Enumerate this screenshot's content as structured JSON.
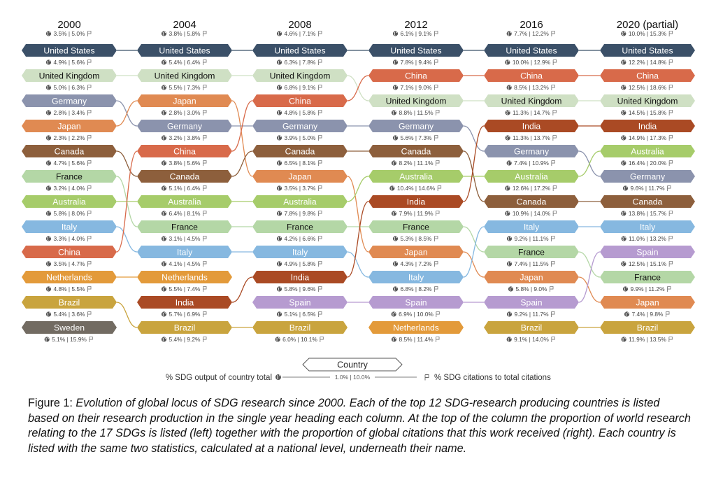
{
  "years": [
    {
      "label": "2000",
      "world_output": "3.5%",
      "world_citations": "5.0%"
    },
    {
      "label": "2004",
      "world_output": "3.8%",
      "world_citations": "5.8%"
    },
    {
      "label": "2008",
      "world_output": "4.6%",
      "world_citations": "7.1%"
    },
    {
      "label": "2012",
      "world_output": "6.1%",
      "world_citations": "9.1%"
    },
    {
      "label": "2016",
      "world_output": "7.7%",
      "world_citations": "12.2%"
    },
    {
      "label": "2020 (partial)",
      "world_output": "10.0%",
      "world_citations": "15.3%"
    }
  ],
  "country_colors": {
    "United States": "#3b5068",
    "United Kingdom": "#cfe0c4",
    "Germany": "#8b93ad",
    "Japan": "#e08a52",
    "Canada": "#8d5f3c",
    "France": "#b4d7a6",
    "Australia": "#a6cc6a",
    "Italy": "#86b8e0",
    "China": "#d86a4a",
    "Netherlands": "#e39a3a",
    "Brazil": "#c9a43e",
    "Sweden": "#726b62",
    "India": "#aa4a24",
    "Spain": "#b69bd0"
  },
  "dark_text_countries": [
    "United Kingdom",
    "France"
  ],
  "columns": [
    [
      {
        "name": "United States",
        "output": "4.9%",
        "citations": "5.6%"
      },
      {
        "name": "United Kingdom",
        "output": "5.0%",
        "citations": "6.3%"
      },
      {
        "name": "Germany",
        "output": "2.8%",
        "citations": "3.4%"
      },
      {
        "name": "Japan",
        "output": "2.3%",
        "citations": "2.2%"
      },
      {
        "name": "Canada",
        "output": "4.7%",
        "citations": "5.6%"
      },
      {
        "name": "France",
        "output": "3.2%",
        "citations": "4.0%"
      },
      {
        "name": "Australia",
        "output": "5.8%",
        "citations": "8.0%"
      },
      {
        "name": "Italy",
        "output": "3.3%",
        "citations": "4.0%"
      },
      {
        "name": "China",
        "output": "3.5%",
        "citations": "4.7%"
      },
      {
        "name": "Netherlands",
        "output": "4.8%",
        "citations": "5.5%"
      },
      {
        "name": "Brazil",
        "output": "5.4%",
        "citations": "3.6%"
      },
      {
        "name": "Sweden",
        "output": "5.1%",
        "citations": "15.9%"
      }
    ],
    [
      {
        "name": "United States",
        "output": "5.4%",
        "citations": "6.4%"
      },
      {
        "name": "United Kingdom",
        "output": "5.5%",
        "citations": "7.3%"
      },
      {
        "name": "Japan",
        "output": "2.8%",
        "citations": "3.0%"
      },
      {
        "name": "Germany",
        "output": "3.2%",
        "citations": "3.8%"
      },
      {
        "name": "China",
        "output": "3.8%",
        "citations": "5.6%"
      },
      {
        "name": "Canada",
        "output": "5.1%",
        "citations": "6.4%"
      },
      {
        "name": "Australia",
        "output": "6.4%",
        "citations": "8.1%"
      },
      {
        "name": "France",
        "output": "3.1%",
        "citations": "4.5%"
      },
      {
        "name": "Italy",
        "output": "4.1%",
        "citations": "4.5%"
      },
      {
        "name": "Netherlands",
        "output": "5.5%",
        "citations": "7.4%"
      },
      {
        "name": "India",
        "output": "5.7%",
        "citations": "6.9%"
      },
      {
        "name": "Brazil",
        "output": "5.4%",
        "citations": "9.2%"
      }
    ],
    [
      {
        "name": "United States",
        "output": "6.3%",
        "citations": "7.8%"
      },
      {
        "name": "United Kingdom",
        "output": "6.8%",
        "citations": "9.1%"
      },
      {
        "name": "China",
        "output": "4.8%",
        "citations": "5.8%"
      },
      {
        "name": "Germany",
        "output": "3.9%",
        "citations": "5.0%"
      },
      {
        "name": "Canada",
        "output": "6.5%",
        "citations": "8.1%"
      },
      {
        "name": "Japan",
        "output": "3.5%",
        "citations": "3.7%"
      },
      {
        "name": "Australia",
        "output": "7.8%",
        "citations": "9.8%"
      },
      {
        "name": "France",
        "output": "4.2%",
        "citations": "6.6%"
      },
      {
        "name": "Italy",
        "output": "4.9%",
        "citations": "5.8%"
      },
      {
        "name": "India",
        "output": "5.8%",
        "citations": "9.6%"
      },
      {
        "name": "Spain",
        "output": "5.1%",
        "citations": "6.5%"
      },
      {
        "name": "Brazil",
        "output": "6.0%",
        "citations": "10.1%"
      }
    ],
    [
      {
        "name": "United States",
        "output": "7.8%",
        "citations": "9.4%"
      },
      {
        "name": "China",
        "output": "7.1%",
        "citations": "9.0%"
      },
      {
        "name": "United Kingdom",
        "output": "8.8%",
        "citations": "11.5%"
      },
      {
        "name": "Germany",
        "output": "5.6%",
        "citations": "7.3%"
      },
      {
        "name": "Canada",
        "output": "8.2%",
        "citations": "11.1%"
      },
      {
        "name": "Australia",
        "output": "10.4%",
        "citations": "14.6%"
      },
      {
        "name": "India",
        "output": "7.9%",
        "citations": "11.9%"
      },
      {
        "name": "France",
        "output": "5.3%",
        "citations": "8.5%"
      },
      {
        "name": "Japan",
        "output": "4.3%",
        "citations": "7.2%"
      },
      {
        "name": "Italy",
        "output": "6.8%",
        "citations": "8.2%"
      },
      {
        "name": "Spain",
        "output": "6.9%",
        "citations": "10.0%"
      },
      {
        "name": "Netherlands",
        "output": "8.5%",
        "citations": "11.4%"
      }
    ],
    [
      {
        "name": "United States",
        "output": "10.0%",
        "citations": "12.9%"
      },
      {
        "name": "China",
        "output": "8.5%",
        "citations": "13.2%"
      },
      {
        "name": "United Kingdom",
        "output": "11.3%",
        "citations": "14.7%"
      },
      {
        "name": "India",
        "output": "11.3%",
        "citations": "13.7%"
      },
      {
        "name": "Germany",
        "output": "7.4%",
        "citations": "10.9%"
      },
      {
        "name": "Australia",
        "output": "12.6%",
        "citations": "17.2%"
      },
      {
        "name": "Canada",
        "output": "10.9%",
        "citations": "14.0%"
      },
      {
        "name": "Italy",
        "output": "9.2%",
        "citations": "11.1%"
      },
      {
        "name": "France",
        "output": "7.4%",
        "citations": "11.5%"
      },
      {
        "name": "Japan",
        "output": "5.8%",
        "citations": "9.0%"
      },
      {
        "name": "Spain",
        "output": "9.2%",
        "citations": "11.7%"
      },
      {
        "name": "Brazil",
        "output": "9.1%",
        "citations": "14.0%"
      }
    ],
    [
      {
        "name": "United States",
        "output": "12.2%",
        "citations": "14.8%"
      },
      {
        "name": "China",
        "output": "12.5%",
        "citations": "18.6%"
      },
      {
        "name": "United Kingdom",
        "output": "14.5%",
        "citations": "15.8%"
      },
      {
        "name": "India",
        "output": "14.9%",
        "citations": "17.3%"
      },
      {
        "name": "Australia",
        "output": "16.4%",
        "citations": "20.0%"
      },
      {
        "name": "Germany",
        "output": "9.6%",
        "citations": "11.7%"
      },
      {
        "name": "Canada",
        "output": "13.8%",
        "citations": "15.7%"
      },
      {
        "name": "Italy",
        "output": "11.0%",
        "citations": "13.2%"
      },
      {
        "name": "Spain",
        "output": "12.5%",
        "citations": "15.1%"
      },
      {
        "name": "France",
        "output": "9.9%",
        "citations": "11.2%"
      },
      {
        "name": "Japan",
        "output": "7.4%",
        "citations": "9.8%"
      },
      {
        "name": "Brazil",
        "output": "11.9%",
        "citations": "13.5%"
      }
    ]
  ],
  "legend": {
    "title": "Country",
    "left_label": "% SDG output of country total",
    "example": "1.0% | 10.0%",
    "right_label": "% SDG citations to total citations"
  },
  "caption": {
    "prefix": "Figure 1: ",
    "text": "Evolution of global locus of SDG research since 2000. Each of the top 12 SDG-research producing countries is listed based on their research production in the single year heading each column. At the top of the column the proportion of world research relating to the 17 SDGs is listed (left) together with the proportion of global citations that this work received (right). Each country is listed with the same two statistics, calculated at a national level, underneath their name."
  }
}
